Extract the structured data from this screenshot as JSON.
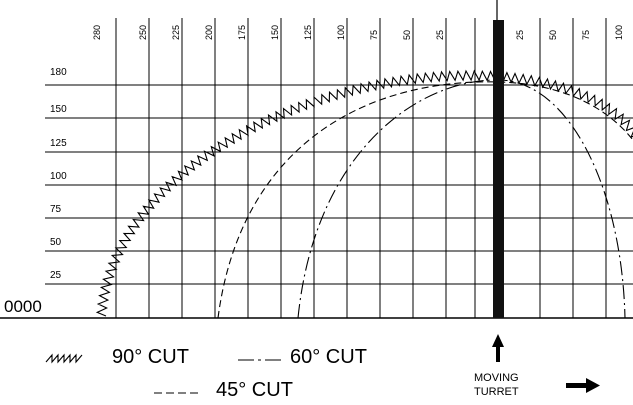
{
  "top_ticks_left": [
    "280",
    "250",
    "225",
    "200",
    "175",
    "150",
    "125",
    "100",
    "75",
    "50",
    "25"
  ],
  "top_ticks_right": [
    "25",
    "50",
    "75",
    "100"
  ],
  "left_ticks": [
    "180",
    "150",
    "125",
    "100",
    "75",
    "50",
    "25"
  ],
  "origin_label": "0000",
  "legend": {
    "cut_90": "90° CUT",
    "cut_60": "60° CUT",
    "cut_45": "45° CUT"
  },
  "turret_label_line1": "MOVING",
  "turret_label_line2": "TURRET"
}
